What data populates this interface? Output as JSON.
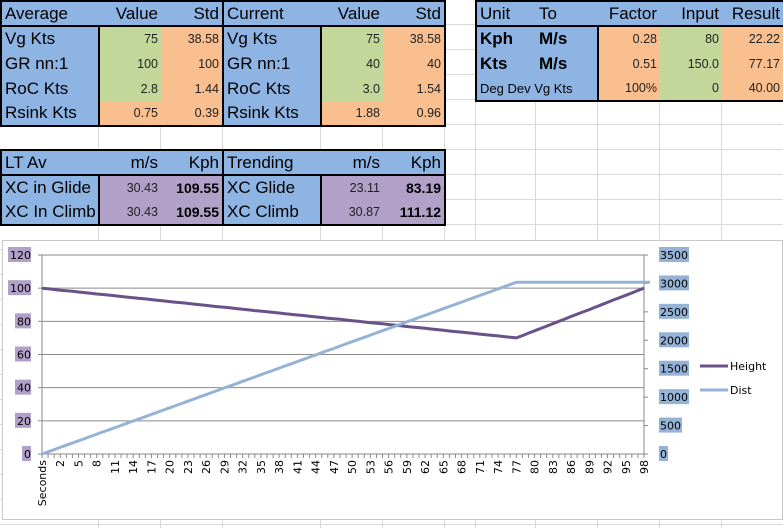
{
  "average": {
    "title": "Average",
    "col1": "Value",
    "col2": "Std",
    "rows": [
      {
        "label": "Vg Kts",
        "value": "75",
        "std": "38.58"
      },
      {
        "label": "GR nn:1",
        "value": "100",
        "std": "100"
      },
      {
        "label": "RoC Kts",
        "value": "2.8",
        "std": "1.44"
      },
      {
        "label": "Rsink Kts",
        "value": "0.75",
        "std": "0.39"
      }
    ]
  },
  "current": {
    "title": "Current",
    "col1": "Value",
    "col2": "Std",
    "rows": [
      {
        "label": "Vg Kts",
        "value": "75",
        "std": "38.58"
      },
      {
        "label": "GR nn:1",
        "value": "40",
        "std": "40"
      },
      {
        "label": "RoC Kts",
        "value": "3.0",
        "std": "1.54"
      },
      {
        "label": "Rsink Kts",
        "value": "1.88",
        "std": "0.96"
      }
    ]
  },
  "lt_av": {
    "title": "LT Av",
    "col1": "m/s",
    "col2": "Kph",
    "rows": [
      {
        "label": "XC in Glide",
        "ms": "30.43",
        "kph": "109.55"
      },
      {
        "label": "XC In Climb",
        "ms": "30.43",
        "kph": "109.55"
      }
    ]
  },
  "trending": {
    "title": "Trending",
    "col1": "m/s",
    "col2": "Kph",
    "rows": [
      {
        "label": "XC Glide",
        "ms": "23.11",
        "kph": "83.19"
      },
      {
        "label": "XC Climb",
        "ms": "30.87",
        "kph": "111.12"
      }
    ]
  },
  "convert": {
    "headers": [
      "Unit",
      "To",
      "Factor",
      "Input",
      "Result"
    ],
    "rows": [
      {
        "unit": "Kph",
        "to": "M/s",
        "factor": "0.28",
        "input": "80",
        "result": "22.22"
      },
      {
        "unit": "Kts",
        "to": "M/s",
        "factor": "0.51",
        "input": "150.0",
        "result": "77.17"
      },
      {
        "unit": "Deg Dev Vg Kts",
        "to": "",
        "factor": "100%",
        "input": "0",
        "result": "40.00"
      }
    ]
  },
  "colors": {
    "header": "#8DB4E2",
    "value": "#C4D79B",
    "std": "#FABF8F",
    "xc": "#B1A0C7",
    "height": "#69518A",
    "dist": "#95B3D7"
  },
  "chart_data": {
    "type": "line",
    "x_tick_labels": [
      "Seconds",
      "2",
      "5",
      "8",
      "11",
      "14",
      "17",
      "20",
      "23",
      "26",
      "29",
      "32",
      "35",
      "38",
      "41",
      "44",
      "47",
      "50",
      "53",
      "56",
      "59",
      "62",
      "65",
      "68",
      "71",
      "74",
      "77",
      "80",
      "83",
      "86",
      "89",
      "92",
      "95",
      "98"
    ],
    "y_left": {
      "range": [
        0,
        120
      ],
      "ticks": [
        "0",
        "20",
        "40",
        "60",
        "80",
        "100",
        "120"
      ]
    },
    "y_right": {
      "range": [
        0,
        3500
      ],
      "ticks": [
        "0",
        "500",
        "1000",
        "1500",
        "2000",
        "2500",
        "3000",
        "3500"
      ]
    },
    "grid": true,
    "legend": "right",
    "series": [
      {
        "name": "Height",
        "axis": "left",
        "values": [
          100,
          99.6,
          99.2,
          98.8,
          98.5,
          98.1,
          97.7,
          97.3,
          96.9,
          96.5,
          96.2,
          95.8,
          95.4,
          95.0,
          94.6,
          94.2,
          93.8,
          93.5,
          93.1,
          92.7,
          92.3,
          91.9,
          91.5,
          91.2,
          90.8,
          90.4,
          90.0,
          89.6,
          89.2,
          88.8,
          88.5,
          88.1,
          87.7,
          87.3,
          86.9,
          86.5,
          86.2,
          85.8,
          85.4,
          85.0,
          84.6,
          84.2,
          83.8,
          83.5,
          83.1,
          82.7,
          82.3,
          81.9,
          81.5,
          81.2,
          80.8,
          80.4,
          80.0,
          79.6,
          79.2,
          78.8,
          78.5,
          78.1,
          77.7,
          77.3,
          76.9,
          76.5,
          76.2,
          75.8,
          75.4,
          75.0,
          74.6,
          74.2,
          73.8,
          73.5,
          73.1,
          72.7,
          72.3,
          71.9,
          71.5,
          71.2,
          70.8,
          70.4,
          70.0,
          71.4,
          72.9,
          74.3,
          75.7,
          77.1,
          78.6,
          80.0,
          81.4,
          82.9,
          84.3,
          85.7,
          87.1,
          88.6,
          90.0,
          91.4,
          92.9,
          94.3,
          95.7,
          97.1,
          98.6,
          100.0
        ]
      },
      {
        "name": "Dist",
        "axis": "right",
        "values": [
          0,
          39,
          77,
          116,
          155,
          194,
          232,
          271,
          310,
          348,
          387,
          426,
          465,
          503,
          542,
          581,
          619,
          658,
          697,
          736,
          774,
          813,
          852,
          890,
          929,
          968,
          1007,
          1045,
          1084,
          1123,
          1162,
          1200,
          1239,
          1278,
          1316,
          1355,
          1394,
          1433,
          1471,
          1510,
          1549,
          1587,
          1626,
          1665,
          1704,
          1742,
          1781,
          1820,
          1858,
          1897,
          1936,
          1975,
          2013,
          2052,
          2091,
          2130,
          2168,
          2207,
          2246,
          2284,
          2323,
          2362,
          2401,
          2439,
          2478,
          2517,
          2555,
          2594,
          2633,
          2672,
          2710,
          2749,
          2788,
          2826,
          2865,
          2904,
          2943,
          2981,
          3020,
          3020,
          3020,
          3020,
          3020,
          3020,
          3020,
          3020,
          3020,
          3020,
          3020,
          3020,
          3020,
          3020,
          3020,
          3020,
          3020,
          3020,
          3020,
          3020,
          3020,
          3020,
          3020
        ]
      }
    ]
  }
}
